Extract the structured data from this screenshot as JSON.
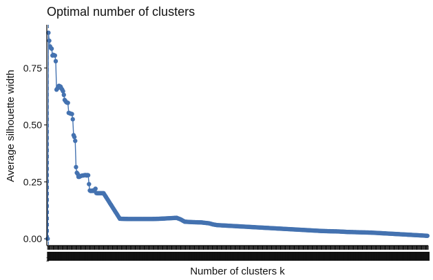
{
  "chart_data": {
    "type": "line",
    "title": "Optimal number of clusters",
    "xlabel": "Number of clusters k",
    "ylabel": "Average silhouette width",
    "x_first_tick": "1",
    "y_ticks": [
      0.0,
      0.25,
      0.5,
      0.75
    ],
    "y_tick_labels": [
      "0.00",
      "0.25",
      "0.50",
      "0.75"
    ],
    "xlim": [
      0,
      470
    ],
    "ylim": [
      -0.03,
      0.94
    ],
    "optimal_k": 2,
    "series": [
      {
        "name": "Average silhouette width",
        "color": "#4472b0",
        "points": [
          [
            1,
            0.0
          ],
          [
            2,
            0.905
          ],
          [
            3,
            0.87
          ],
          [
            4,
            0.845
          ],
          [
            5,
            0.838
          ],
          [
            6,
            0.835
          ],
          [
            7,
            0.805
          ],
          [
            8,
            0.808
          ],
          [
            9,
            0.806
          ],
          [
            10,
            0.805
          ],
          [
            11,
            0.78
          ],
          [
            12,
            0.655
          ],
          [
            13,
            0.66
          ],
          [
            14,
            0.668
          ],
          [
            15,
            0.672
          ],
          [
            16,
            0.67
          ],
          [
            17,
            0.668
          ],
          [
            18,
            0.66
          ],
          [
            19,
            0.655
          ],
          [
            20,
            0.648
          ],
          [
            21,
            0.632
          ],
          [
            22,
            0.61
          ],
          [
            23,
            0.605
          ],
          [
            24,
            0.6
          ],
          [
            25,
            0.598
          ],
          [
            26,
            0.597
          ],
          [
            27,
            0.553
          ],
          [
            28,
            0.552
          ],
          [
            29,
            0.55
          ],
          [
            30,
            0.549
          ],
          [
            31,
            0.548
          ],
          [
            32,
            0.525
          ],
          [
            33,
            0.455
          ],
          [
            34,
            0.447
          ],
          [
            35,
            0.43
          ],
          [
            36,
            0.315
          ],
          [
            37,
            0.29
          ],
          [
            38,
            0.285
          ],
          [
            39,
            0.272
          ],
          [
            40,
            0.272
          ],
          [
            41,
            0.274
          ],
          [
            42,
            0.276
          ],
          [
            43,
            0.277
          ],
          [
            44,
            0.278
          ],
          [
            45,
            0.278
          ],
          [
            46,
            0.279
          ],
          [
            47,
            0.28
          ],
          [
            48,
            0.28
          ],
          [
            49,
            0.278
          ],
          [
            50,
            0.28
          ],
          [
            51,
            0.279
          ],
          [
            52,
            0.24
          ],
          [
            53,
            0.212
          ],
          [
            54,
            0.21
          ],
          [
            55,
            0.21
          ],
          [
            56,
            0.212
          ],
          [
            57,
            0.21
          ],
          [
            58,
            0.213
          ],
          [
            59,
            0.215
          ],
          [
            60,
            0.22
          ],
          [
            61,
            0.201
          ],
          [
            62,
            0.2
          ],
          [
            63,
            0.2
          ],
          [
            64,
            0.2
          ],
          [
            65,
            0.2
          ],
          [
            66,
            0.2
          ],
          [
            67,
            0.2
          ],
          [
            68,
            0.2
          ],
          [
            69,
            0.2
          ],
          [
            70,
            0.2
          ],
          [
            90,
            0.088
          ],
          [
            100,
            0.087
          ],
          [
            110,
            0.087
          ],
          [
            120,
            0.087
          ],
          [
            130,
            0.087
          ],
          [
            140,
            0.088
          ],
          [
            150,
            0.09
          ],
          [
            160,
            0.092
          ],
          [
            165,
            0.085
          ],
          [
            170,
            0.075
          ],
          [
            180,
            0.073
          ],
          [
            190,
            0.072
          ],
          [
            200,
            0.068
          ],
          [
            205,
            0.063
          ],
          [
            210,
            0.06
          ],
          [
            220,
            0.058
          ],
          [
            230,
            0.056
          ],
          [
            240,
            0.054
          ],
          [
            250,
            0.052
          ],
          [
            260,
            0.05
          ],
          [
            270,
            0.048
          ],
          [
            280,
            0.046
          ],
          [
            290,
            0.044
          ],
          [
            300,
            0.042
          ],
          [
            310,
            0.04
          ],
          [
            320,
            0.038
          ],
          [
            330,
            0.036
          ],
          [
            340,
            0.034
          ],
          [
            350,
            0.033
          ],
          [
            360,
            0.032
          ],
          [
            370,
            0.03
          ],
          [
            380,
            0.029
          ],
          [
            390,
            0.028
          ],
          [
            400,
            0.027
          ],
          [
            410,
            0.025
          ],
          [
            420,
            0.023
          ],
          [
            430,
            0.021
          ],
          [
            440,
            0.019
          ],
          [
            450,
            0.017
          ],
          [
            460,
            0.015
          ],
          [
            469,
            0.013
          ]
        ]
      }
    ]
  }
}
